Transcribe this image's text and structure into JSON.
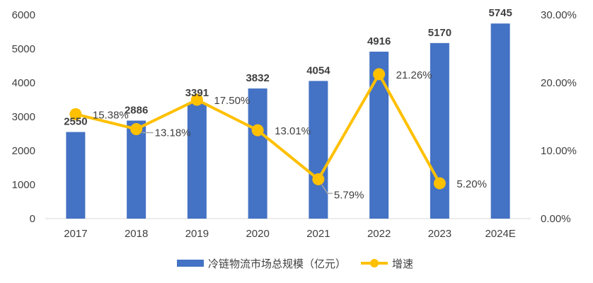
{
  "chart_data": {
    "type": "bar",
    "categories": [
      "2017",
      "2018",
      "2019",
      "2020",
      "2021",
      "2022",
      "2023",
      "2024E"
    ],
    "series": [
      {
        "name": "冷链物流市场总规模（亿元）",
        "type": "bar",
        "axis": "left",
        "color": "#4472C4",
        "values": [
          2550,
          2886,
          3391,
          3832,
          4054,
          4916,
          5170,
          5745
        ],
        "labels": [
          "2550",
          "2886",
          "3391",
          "3832",
          "4054",
          "4916",
          "5170",
          "5745"
        ]
      },
      {
        "name": "增速",
        "type": "line",
        "axis": "right",
        "color": "#FFC000",
        "values": [
          15.38,
          13.18,
          17.5,
          13.01,
          5.79,
          21.26,
          5.2,
          null
        ],
        "labels": [
          "15.38%",
          "13.18%",
          "17.50%",
          "13.01%",
          "5.79%",
          "21.26%",
          "5.20%",
          null
        ]
      }
    ],
    "left_axis": {
      "min": 0,
      "max": 6000,
      "ticks": [
        "0",
        "1000",
        "2000",
        "3000",
        "4000",
        "5000",
        "6000"
      ]
    },
    "right_axis": {
      "min": 0,
      "max": 30,
      "ticks": [
        "0.00%",
        "10.00%",
        "20.00%",
        "30.00%"
      ]
    },
    "grid": false,
    "legend_position": "bottom"
  }
}
